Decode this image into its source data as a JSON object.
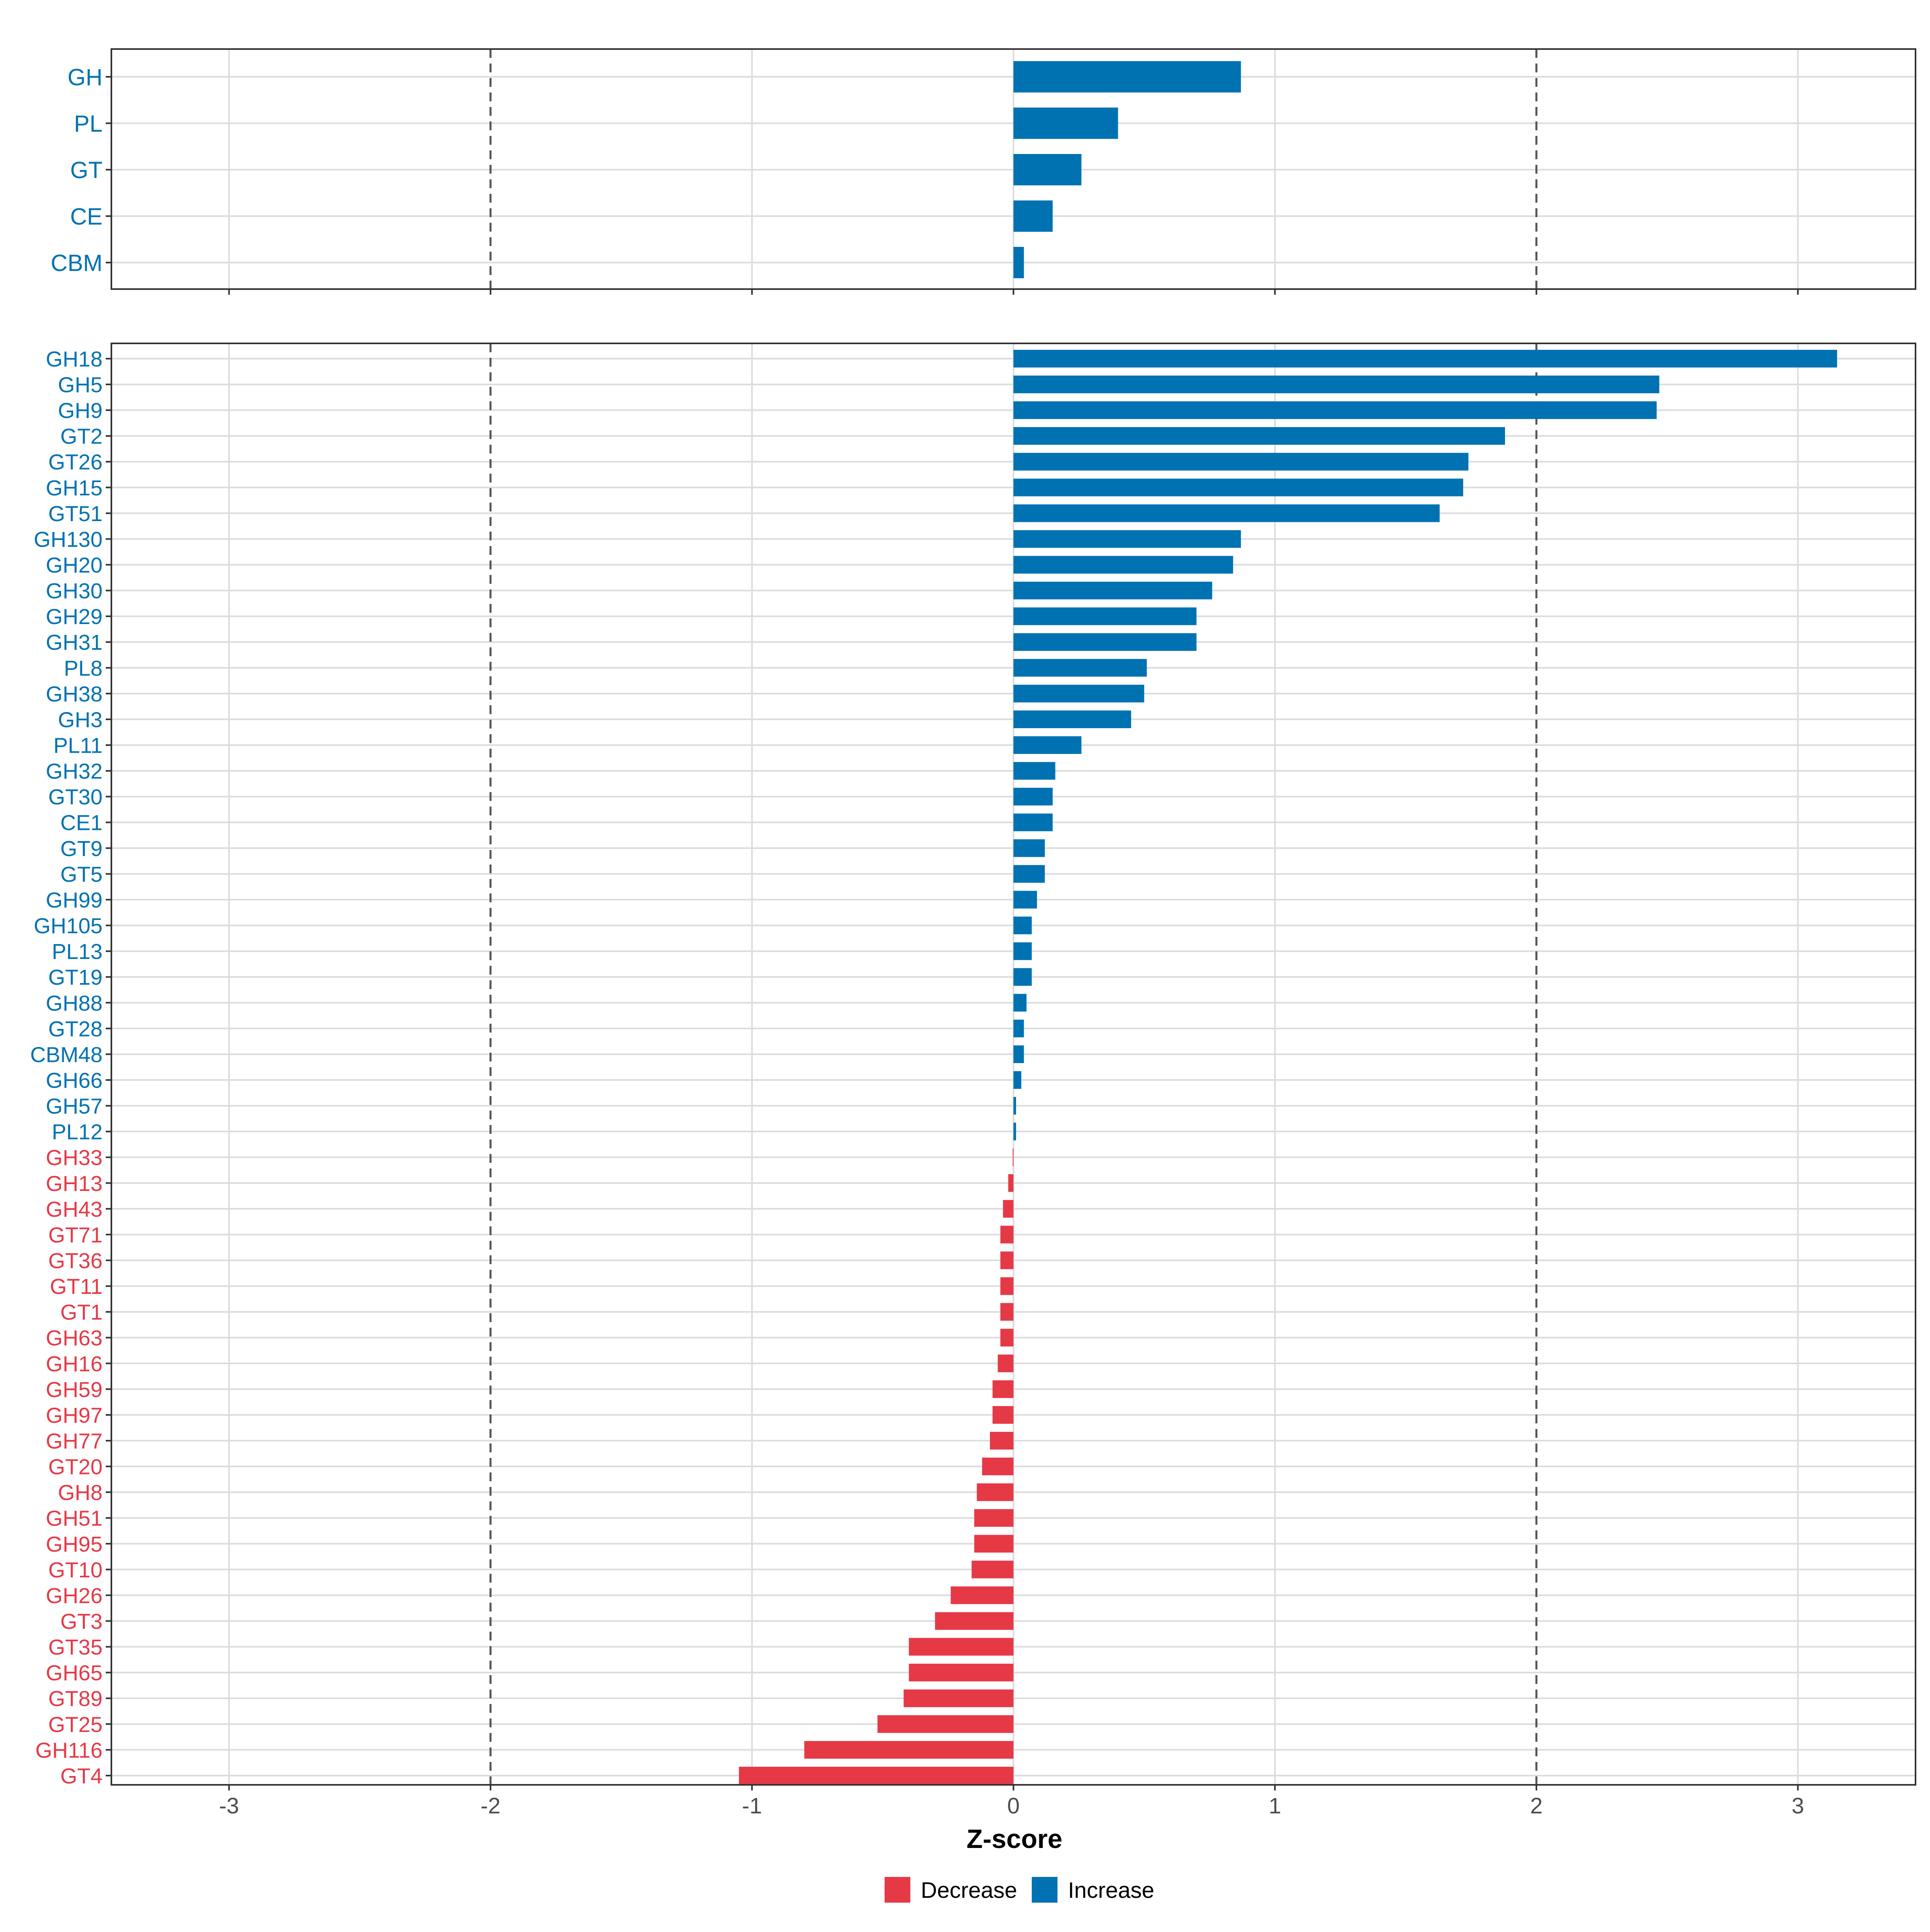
{
  "chart_data": [
    {
      "type": "bar",
      "orientation": "horizontal",
      "panel": "top",
      "categories": [
        "GH",
        "PL",
        "GT",
        "CE",
        "CBM"
      ],
      "values": [
        0.87,
        0.4,
        0.26,
        0.15,
        0.04
      ],
      "xlim": [
        -3.45,
        3.45
      ],
      "grid": true,
      "reference_lines": [
        -2,
        2
      ]
    },
    {
      "type": "bar",
      "orientation": "horizontal",
      "panel": "bottom",
      "categories": [
        "GH18",
        "GH5",
        "GH9",
        "GT2",
        "GT26",
        "GH15",
        "GT51",
        "GH130",
        "GH20",
        "GH30",
        "GH29",
        "GH31",
        "PL8",
        "GH38",
        "GH3",
        "PL11",
        "GH32",
        "GT30",
        "CE1",
        "GT9",
        "GT5",
        "GH99",
        "GH105",
        "PL13",
        "GT19",
        "GH88",
        "GT28",
        "CBM48",
        "GH66",
        "GH57",
        "PL12",
        "GH33",
        "GH13",
        "GH43",
        "GT71",
        "GT36",
        "GT11",
        "GT1",
        "GH63",
        "GH16",
        "GH59",
        "GH97",
        "GH77",
        "GT20",
        "GH8",
        "GH51",
        "GH95",
        "GT10",
        "GH26",
        "GT3",
        "GT35",
        "GH65",
        "GT89",
        "GT25",
        "GH116",
        "GT4"
      ],
      "values": [
        3.15,
        2.47,
        2.46,
        1.88,
        1.74,
        1.72,
        1.63,
        0.87,
        0.84,
        0.76,
        0.7,
        0.7,
        0.51,
        0.5,
        0.45,
        0.26,
        0.16,
        0.15,
        0.15,
        0.12,
        0.12,
        0.09,
        0.07,
        0.07,
        0.07,
        0.05,
        0.04,
        0.04,
        0.03,
        0.01,
        0.01,
        -0.003,
        -0.02,
        -0.04,
        -0.05,
        -0.05,
        -0.05,
        -0.05,
        -0.05,
        -0.06,
        -0.08,
        -0.08,
        -0.09,
        -0.12,
        -0.14,
        -0.15,
        -0.15,
        -0.16,
        -0.24,
        -0.3,
        -0.4,
        -0.4,
        -0.42,
        -0.52,
        -0.8,
        -1.05
      ],
      "xlim": [
        -3.45,
        3.45
      ],
      "xticks": [
        -3,
        -2,
        -1,
        0,
        1,
        2,
        3
      ],
      "xtick_labels": [
        "-3",
        "-2",
        "-1",
        "0",
        "1",
        "2",
        "3"
      ],
      "xlabel": "Z-score",
      "grid": true,
      "reference_lines": [
        -2,
        2
      ]
    }
  ],
  "legend": {
    "placement": "bottom",
    "items": [
      {
        "label": "Decrease",
        "color": "#e63946"
      },
      {
        "label": "Increase",
        "color": "#0072b2"
      }
    ]
  },
  "colors": {
    "increase": "#0072b2",
    "decrease": "#e63946",
    "grid": "#dcdcdc",
    "refline": "#555555",
    "frame": "#333333"
  }
}
